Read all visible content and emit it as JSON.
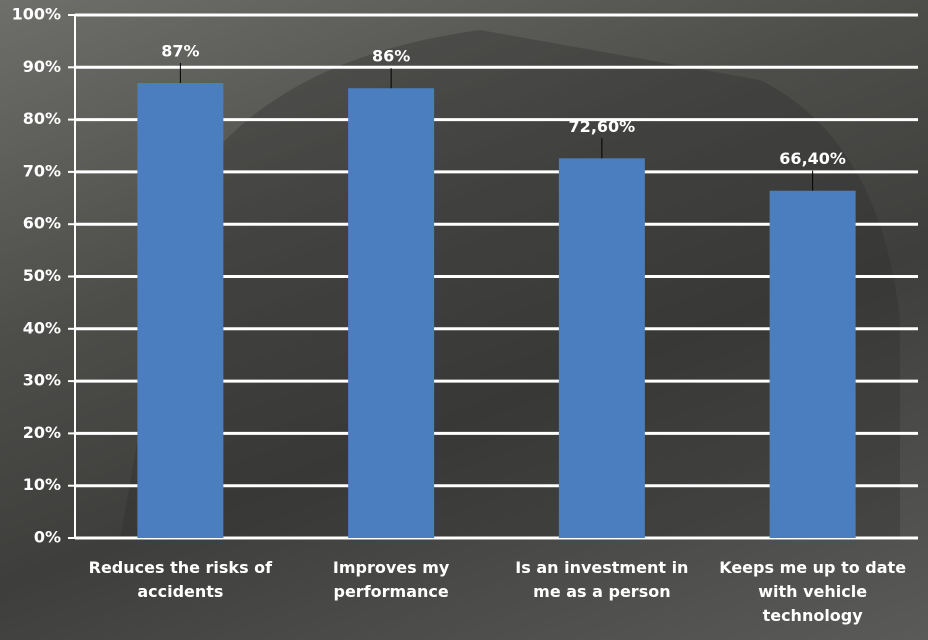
{
  "chart_data": {
    "type": "bar",
    "categories": [
      "Reduces the risks of accidents",
      "Improves my performance",
      "Is an investment in me as a person",
      "Keeps me up to date with vehicle technology"
    ],
    "values": [
      87,
      86,
      72.6,
      66.4
    ],
    "value_labels": [
      "87%",
      "86%",
      "72,60%",
      "66,40%"
    ],
    "color": "#4a7ebf",
    "ylim": [
      0,
      100
    ],
    "yticks": [
      {
        "value": 0,
        "label": "0%"
      },
      {
        "value": 10,
        "label": "10%"
      },
      {
        "value": 20,
        "label": "20%"
      },
      {
        "value": 30,
        "label": "30%"
      },
      {
        "value": 40,
        "label": "40%"
      },
      {
        "value": 50,
        "label": "50%"
      },
      {
        "value": 60,
        "label": "60%"
      },
      {
        "value": 70,
        "label": "70%"
      },
      {
        "value": 80,
        "label": "80%"
      },
      {
        "value": 90,
        "label": "90%"
      },
      {
        "value": 100,
        "label": "100%"
      }
    ],
    "grid": true
  }
}
